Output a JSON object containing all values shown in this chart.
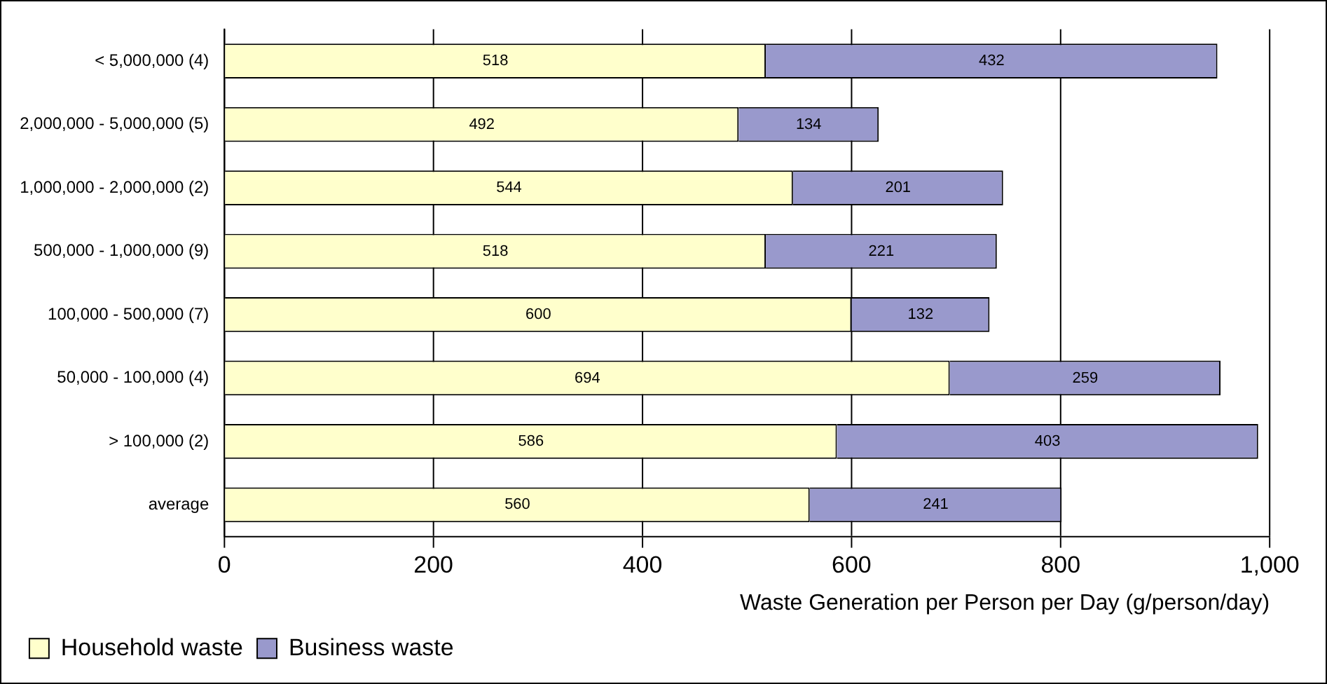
{
  "chart_data": {
    "type": "bar",
    "orientation": "horizontal",
    "stacked": true,
    "categories": [
      "< 5,000,000 (4)",
      "2,000,000 - 5,000,000 (5)",
      "1,000,000 - 2,000,000 (2)",
      "500,000 - 1,000,000 (9)",
      "100,000 - 500,000 (7)",
      "50,000 - 100,000 (4)",
      "> 100,000 (2)",
      "average"
    ],
    "series": [
      {
        "name": "Household waste",
        "color": "#ffffcc",
        "values": [
          518,
          492,
          544,
          518,
          600,
          694,
          586,
          560
        ]
      },
      {
        "name": "Business waste",
        "color": "#9999cc",
        "values": [
          432,
          134,
          201,
          221,
          132,
          259,
          403,
          241
        ]
      }
    ],
    "xlabel": "Waste Generation per Person per Day (g/person/day)",
    "xlim": [
      0,
      1000
    ],
    "xticks": [
      0,
      200,
      400,
      600,
      800,
      {
        "value": 1000,
        "label": "1,000"
      }
    ],
    "grid": "x",
    "legend": "bottom left",
    "data_labels": true
  }
}
